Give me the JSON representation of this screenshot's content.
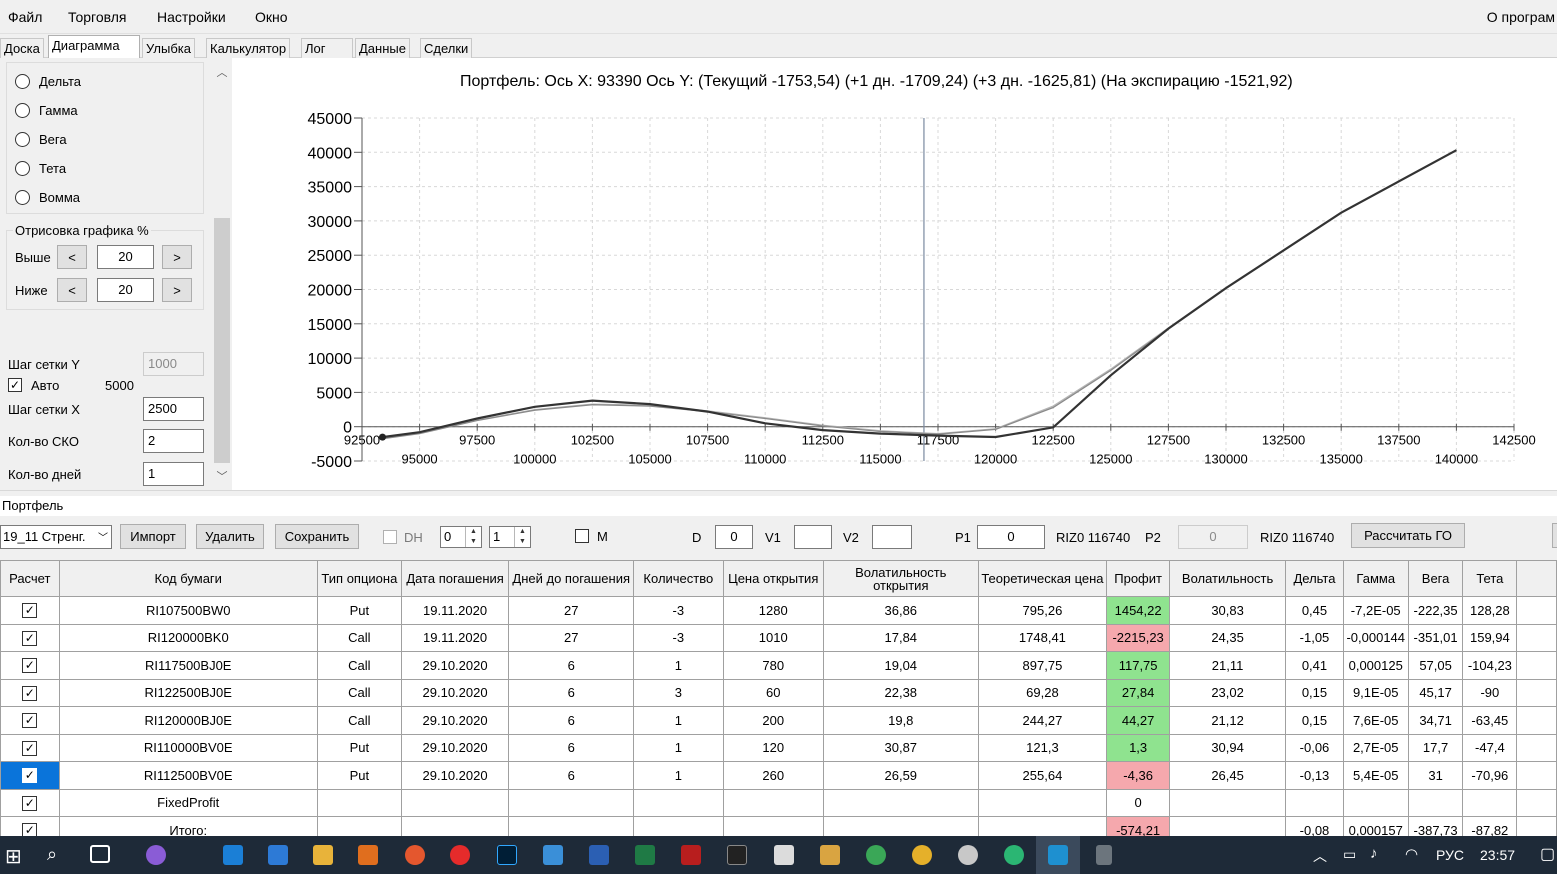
{
  "menu": {
    "items": [
      "Файл",
      "Торговля",
      "Настройки",
      "Окно"
    ],
    "right": "О програм"
  },
  "tabs": [
    "Доска",
    "Диаграмма",
    "Улыбка",
    "Калькулятор",
    "Лог",
    "Данные",
    "Сделки"
  ],
  "active_tab": "Диаграмма",
  "left_panel": {
    "radio_options": [
      "Дельта",
      "Гамма",
      "Вега",
      "Тета",
      "Вомма"
    ],
    "group_title": "Отрисовка графика %",
    "above_label": "Выше",
    "above_value": "20",
    "below_label": "Ниже",
    "below_value": "20",
    "btn_prev": "<",
    "btn_next": ">",
    "grid_step_y_label": "Шаг сетки Y",
    "grid_step_y_value": "1000",
    "auto_label": "Авто",
    "auto_value": "5000",
    "grid_step_x_label": "Шаг сетки X",
    "grid_step_x_value": "2500",
    "sko_label": "Кол-во СКО",
    "sko_value": "2",
    "days_label": "Кол-во дней",
    "days_value": "1"
  },
  "chart_title": "Портфель: Ось X: 93390 Ось Y:  (Текущий -1753,54)  (+1 дн. -1709,24)  (+3 дн. -1625,81)  (На экспирацию -1521,92)",
  "chart_data": {
    "type": "line",
    "title": "Портфель: Ось X: 93390 Ось Y:  (Текущий -1753,54)  (+1 дн. -1709,24)  (+3 дн. -1625,81)  (На экспирацию -1521,92)",
    "xlim": [
      92500,
      142500
    ],
    "ylim": [
      -5000,
      45000
    ],
    "x_ticks_upper": [
      "92500",
      "97500",
      "102500",
      "107500",
      "112500",
      "117500",
      "122500",
      "127500",
      "132500",
      "137500",
      "142500"
    ],
    "x_ticks_lower": [
      "95000",
      "100000",
      "105000",
      "110000",
      "115000",
      "120000",
      "125000",
      "130000",
      "135000",
      "140000"
    ],
    "y_ticks": [
      "45000",
      "40000",
      "35000",
      "30000",
      "25000",
      "20000",
      "15000",
      "10000",
      "5000",
      "0",
      "-5000"
    ],
    "cursor_x": 116890,
    "grid": true,
    "series": [
      {
        "color": "#333333",
        "x": [
          93390,
          95000,
          97500,
          100000,
          102500,
          105000,
          107500,
          110000,
          112500,
          115000,
          117500,
          120000,
          122500,
          125000,
          127500,
          130000,
          135000,
          140000
        ],
        "y": [
          -1521,
          -800,
          1200,
          2900,
          3800,
          3300,
          2200,
          500,
          -500,
          -1000,
          -1300,
          -1500,
          -100,
          7500,
          14300,
          20200,
          31200,
          40300
        ]
      },
      {
        "color": "#8a8a8a",
        "x": [
          93390,
          95000,
          97500,
          100000,
          102500,
          105000,
          107500,
          110000,
          112500,
          115000,
          117500,
          120000,
          122500,
          125000,
          127500,
          130000,
          135000,
          140000
        ],
        "y": [
          -1753,
          -1000,
          900,
          2400,
          3200,
          3000,
          2200,
          1200,
          100,
          -700,
          -1100,
          -400,
          2800,
          8200,
          14300,
          20200,
          31200,
          40300
        ]
      },
      {
        "color": "#b5b5b5",
        "x": [
          93390,
          95000,
          97500,
          100000,
          102500,
          105000,
          107500,
          110000,
          112500,
          115000,
          117500,
          120000,
          122500,
          125000,
          127500,
          130000,
          135000,
          140000
        ],
        "y": [
          -1700,
          -950,
          950,
          2500,
          3300,
          3100,
          2300,
          1300,
          200,
          -600,
          -1000,
          -300,
          3000,
          8400,
          14400,
          20300,
          31200,
          40300
        ]
      }
    ]
  },
  "portfolio_label": "Портфель",
  "toolbar": {
    "portfolio_select": "19_11 Стренг.",
    "import": "Импорт",
    "delete": "Удалить",
    "save": "Сохранить",
    "dh_label": "DH",
    "spin1": "0",
    "spin2": "1",
    "m_label": "M",
    "d_label": "D",
    "d_value": "0",
    "v1_label": "V1",
    "v1_value": "",
    "v2_label": "V2",
    "v2_value": "",
    "p1_label": "P1",
    "p1_value": "0",
    "riz1": "RIZ0 116740",
    "p2_label": "P2",
    "p2_value": "0",
    "riz2": "RIZ0 116740",
    "calc_go": "Рассчитать ГО"
  },
  "table": {
    "headers": [
      "Расчет",
      "Код бумаги",
      "Тип опциона",
      "Дата погашения",
      "Дней до погашения",
      "Количество",
      "Цена открытия",
      "Волатильность открытия",
      "Теоретическая цена",
      "Профит",
      "Волатильность",
      "Дельта",
      "Гамма",
      "Вега",
      "Тета"
    ],
    "rows": [
      [
        "✓",
        "RI107500BW0",
        "Put",
        "19.11.2020",
        "27",
        "-3",
        "1280",
        "36,86",
        "795,26",
        "1454,22",
        "30,83",
        "0,45",
        "-7,2E-05",
        "-222,35",
        "128,28"
      ],
      [
        "✓",
        "RI120000BK0",
        "Call",
        "19.11.2020",
        "27",
        "-3",
        "1010",
        "17,84",
        "1748,41",
        "-2215,23",
        "24,35",
        "-1,05",
        "-0,000144",
        "-351,01",
        "159,94"
      ],
      [
        "✓",
        "RI117500BJ0E",
        "Call",
        "29.10.2020",
        "6",
        "1",
        "780",
        "19,04",
        "897,75",
        "117,75",
        "21,11",
        "0,41",
        "0,000125",
        "57,05",
        "-104,23"
      ],
      [
        "✓",
        "RI122500BJ0E",
        "Call",
        "29.10.2020",
        "6",
        "3",
        "60",
        "22,38",
        "69,28",
        "27,84",
        "23,02",
        "0,15",
        "9,1E-05",
        "45,17",
        "-90"
      ],
      [
        "✓",
        "RI120000BJ0E",
        "Call",
        "29.10.2020",
        "6",
        "1",
        "200",
        "19,8",
        "244,27",
        "44,27",
        "21,12",
        "0,15",
        "7,6E-05",
        "34,71",
        "-63,45"
      ],
      [
        "✓",
        "RI110000BV0E",
        "Put",
        "29.10.2020",
        "6",
        "1",
        "120",
        "30,87",
        "121,3",
        "1,3",
        "30,94",
        "-0,06",
        "2,7E-05",
        "17,7",
        "-47,4"
      ],
      [
        "✓",
        "RI112500BV0E",
        "Put",
        "29.10.2020",
        "6",
        "1",
        "260",
        "26,59",
        "255,64",
        "-4,36",
        "26,45",
        "-0,13",
        "5,4E-05",
        "31",
        "-70,96"
      ],
      [
        "✓",
        "FixedProfit",
        "",
        "",
        "",
        "",
        "",
        "",
        "",
        "0",
        "",
        "",
        "",
        "",
        ""
      ],
      [
        "✓",
        "Итого:",
        "",
        "",
        "",
        "",
        "",
        "",
        "",
        "-574,21",
        "",
        "-0,08",
        "0,000157",
        "-387,73",
        "-87,82"
      ]
    ],
    "profit_status": [
      "pos",
      "neg",
      "pos",
      "pos",
      "pos",
      "pos",
      "neg",
      "none",
      "neg"
    ]
  },
  "taskbar": {
    "lang": "РУС",
    "time": "23:57"
  }
}
